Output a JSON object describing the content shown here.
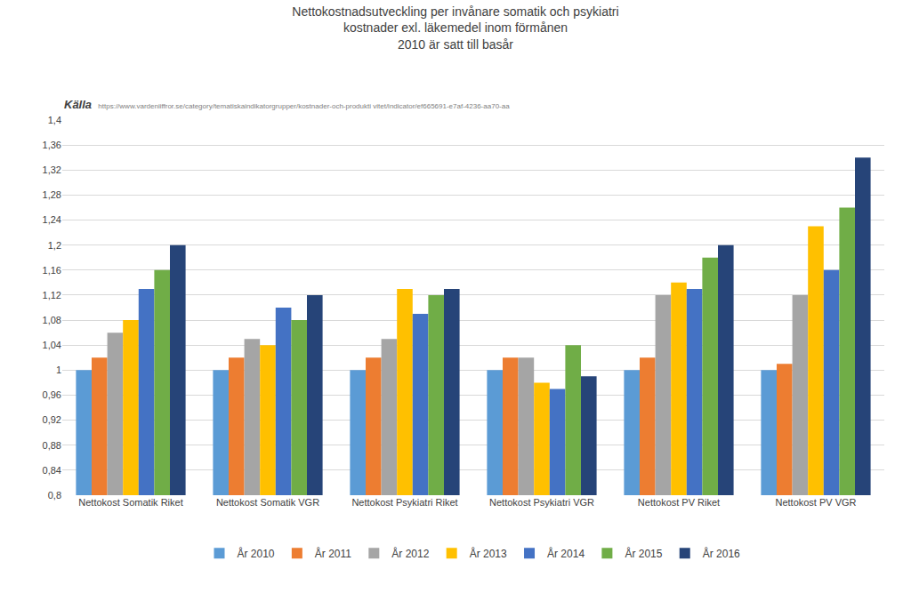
{
  "chart_data": {
    "type": "bar",
    "title": "Nettokostnadsutveckling per invånare somatik och psykiatri",
    "subtitle": [
      "kostnader exl. läkemedel inom förmånen",
      "2010 är satt till basår"
    ],
    "annotations": [
      {
        "text": "Källa"
      },
      {
        "text": "https://www.vardeniiffror.se/category/tematiskaindikatorgrupper/kostnader-och-produkti vitet/indicator/ef665691-e7af-4236-aa70-aa"
      }
    ],
    "categories": [
      "Nettokost Somatik Riket",
      "Nettokost Somatik VGR",
      "Nettokost Psykiatri Riket",
      "Nettokost Psykiatri VGR",
      "Nettokost PV Riket",
      "Nettokost PV VGR"
    ],
    "series": [
      {
        "name": "År 2010",
        "color": "#5B9BD5",
        "values": [
          1.0,
          1.0,
          1.0,
          1.0,
          1.0,
          1.0
        ]
      },
      {
        "name": "År 2011",
        "color": "#ED7D31",
        "values": [
          1.02,
          1.02,
          1.02,
          1.02,
          1.02,
          1.01
        ]
      },
      {
        "name": "År 2012",
        "color": "#A5A5A5",
        "values": [
          1.06,
          1.05,
          1.05,
          1.02,
          1.12,
          1.12
        ]
      },
      {
        "name": "År 2013",
        "color": "#FFC000",
        "values": [
          1.08,
          1.04,
          1.13,
          0.98,
          1.14,
          1.23
        ]
      },
      {
        "name": "År 2014",
        "color": "#4472C4",
        "values": [
          1.13,
          1.1,
          1.09,
          0.97,
          1.13,
          1.16
        ]
      },
      {
        "name": "År 2015",
        "color": "#70AD47",
        "values": [
          1.16,
          1.08,
          1.12,
          1.04,
          1.18,
          1.26
        ]
      },
      {
        "name": "År 2016",
        "color": "#264478",
        "values": [
          1.2,
          1.12,
          1.13,
          0.99,
          1.2,
          1.34
        ]
      }
    ],
    "ylim": [
      0.8,
      1.4
    ],
    "yticks": [
      {
        "value": 0.8,
        "label": "0,8"
      },
      {
        "value": 0.84,
        "label": "0,84"
      },
      {
        "value": 0.88,
        "label": "0,88"
      },
      {
        "value": 0.92,
        "label": "0,92"
      },
      {
        "value": 0.96,
        "label": "0,96"
      },
      1,
      {
        "value": 1.04,
        "label": "1,04"
      },
      {
        "value": 1.08,
        "label": "1,08"
      },
      {
        "value": 1.12,
        "label": "1,12"
      },
      {
        "value": 1.16,
        "label": "1,16"
      },
      {
        "value": 1.2,
        "label": "1,2"
      },
      {
        "value": 1.24,
        "label": "1,24"
      },
      {
        "value": 1.28,
        "label": "1,28"
      },
      {
        "value": 1.32,
        "label": "1,32"
      },
      {
        "value": 1.36,
        "label": "1,36"
      },
      {
        "value": 1.4,
        "label": "1,4"
      }
    ],
    "grid": true,
    "legend": "bottom"
  }
}
